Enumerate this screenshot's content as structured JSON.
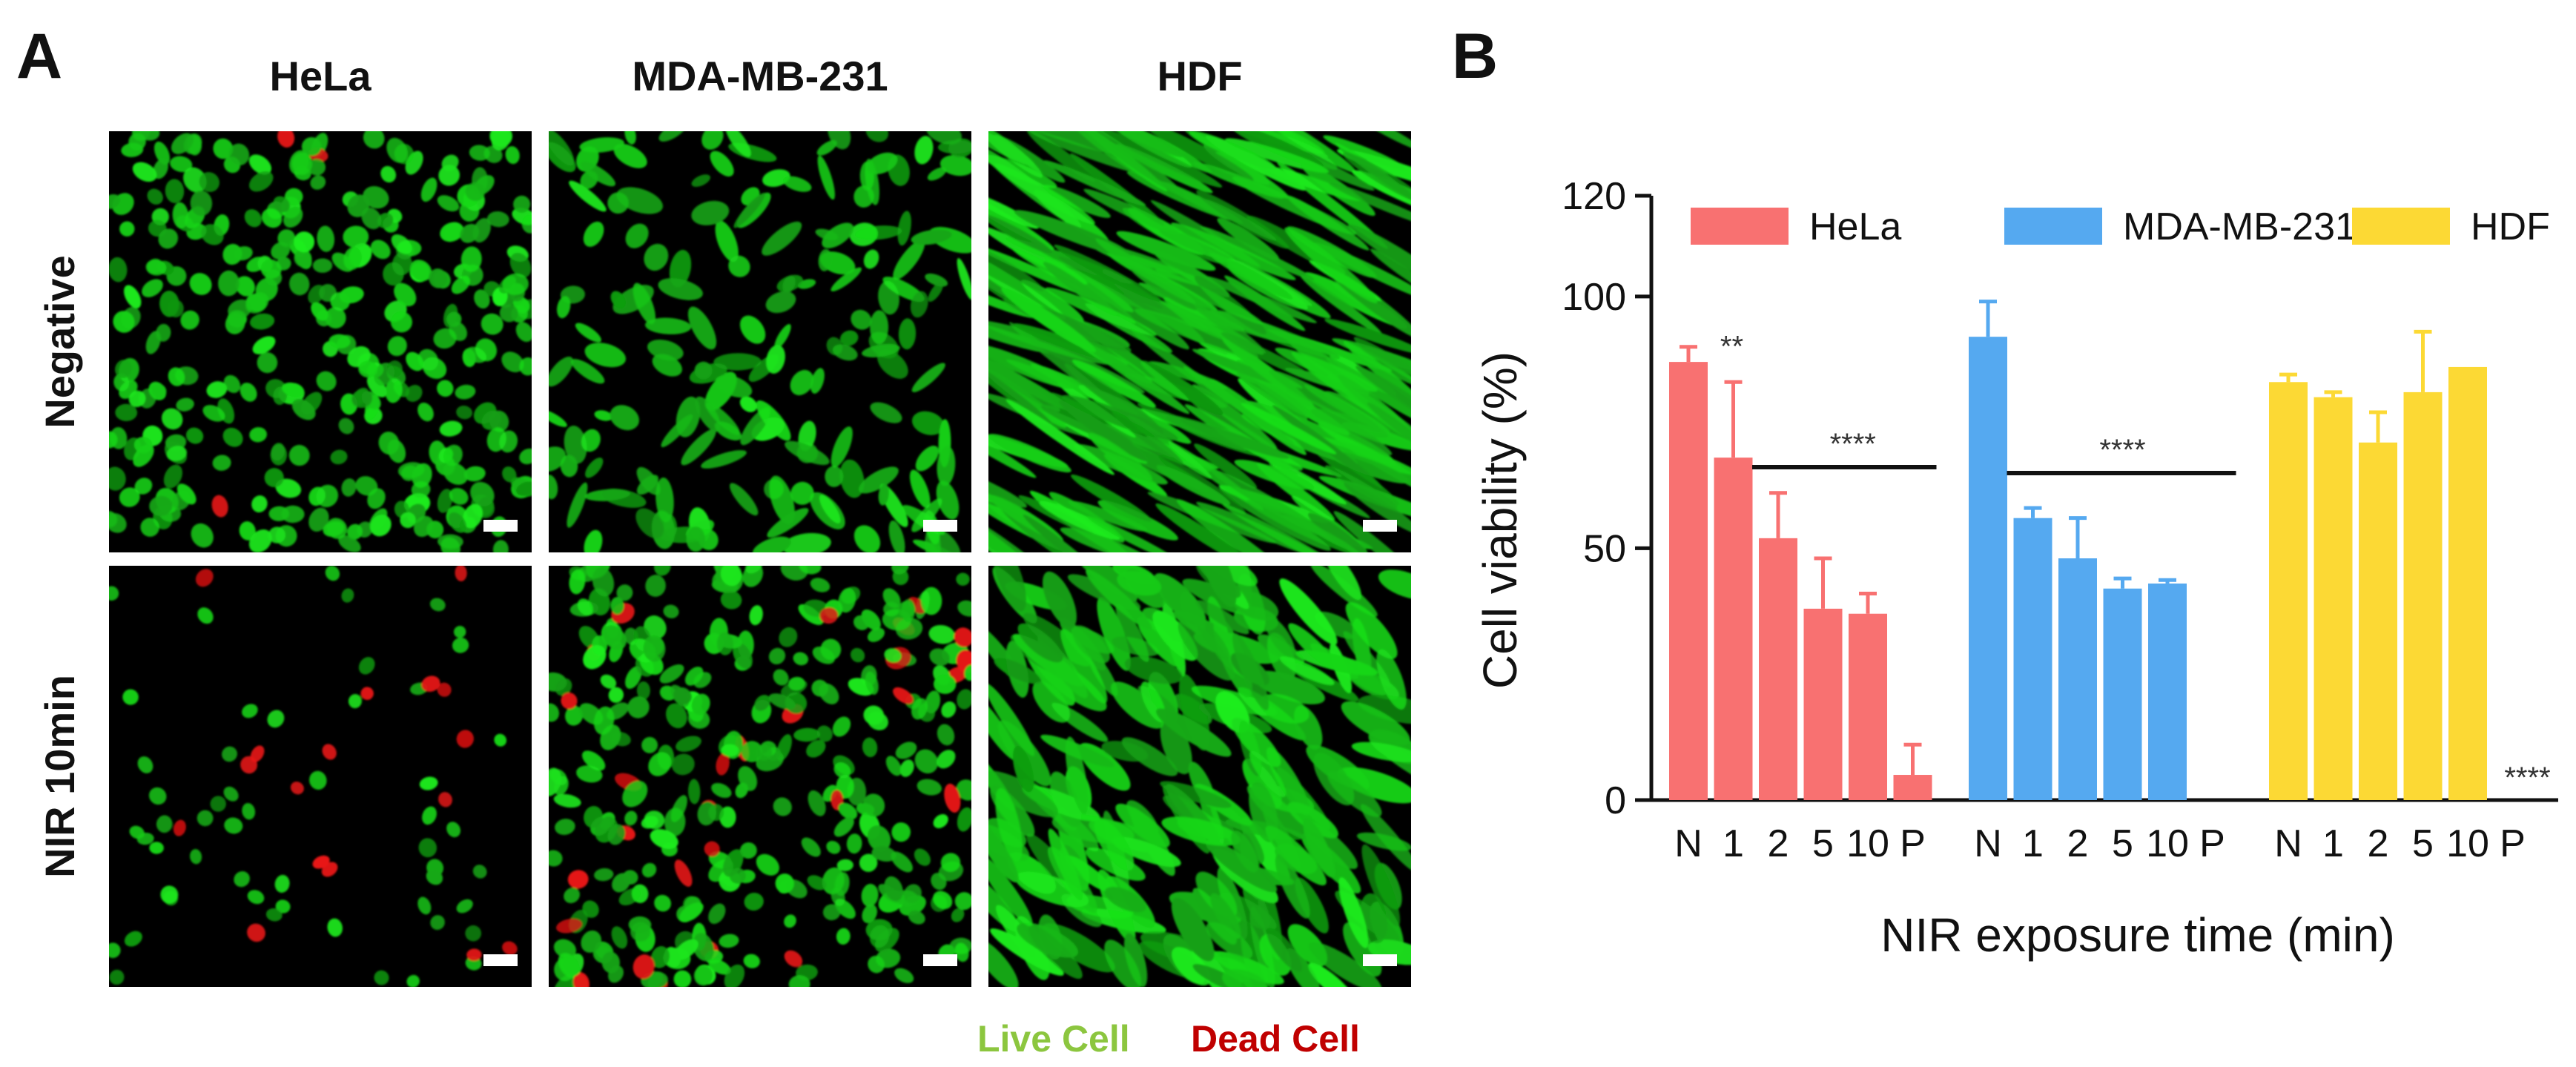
{
  "panel_a": {
    "label": "A",
    "columns": [
      "HeLa",
      "MDA-MB-231",
      "HDF"
    ],
    "rows": [
      "Negative",
      "NIR 10min"
    ],
    "legend": {
      "live": "Live Cell",
      "dead": "Dead Cell"
    },
    "colors": {
      "live": "#8cc63f",
      "dead": "#c00000",
      "cell_green": "#1ed21e",
      "cell_red": "#e81414",
      "background": "#000000",
      "scale_bar": "#ffffff"
    }
  },
  "panel_b": {
    "label": "B"
  },
  "chart_data": {
    "type": "bar",
    "ylabel": "Cell viability (%)",
    "xlabel": "NIR exposure time (min)",
    "ylim": [
      0,
      120
    ],
    "yticks": [
      0,
      50,
      100,
      120
    ],
    "categories": [
      "N",
      "1",
      "2",
      "5",
      "10",
      "P"
    ],
    "legend_position": "top",
    "series": [
      {
        "name": "HeLa",
        "color": "#f87171",
        "values": [
          87,
          68,
          52,
          38,
          37,
          5
        ],
        "errors": [
          3,
          15,
          9,
          10,
          4,
          6
        ]
      },
      {
        "name": "MDA-MB-231",
        "color": "#55a9f0",
        "values": [
          92,
          56,
          48,
          42,
          43,
          null
        ],
        "errors": [
          7,
          2,
          8,
          2,
          0.7,
          null
        ]
      },
      {
        "name": "HDF",
        "color": "#fcd934",
        "values": [
          83,
          80,
          71,
          81,
          86,
          0
        ],
        "errors": [
          1.5,
          1,
          6,
          12,
          0,
          null
        ]
      }
    ],
    "annotations": [
      {
        "text": "**",
        "series": "HeLa",
        "category": "1"
      },
      {
        "text": "****",
        "series": "HeLa",
        "category": "2-P",
        "bracket": true
      },
      {
        "text": "****",
        "series": "MDA-MB-231",
        "category": "1-P",
        "bracket": true
      },
      {
        "text": "****",
        "series": "HDF",
        "category": "P"
      }
    ]
  }
}
